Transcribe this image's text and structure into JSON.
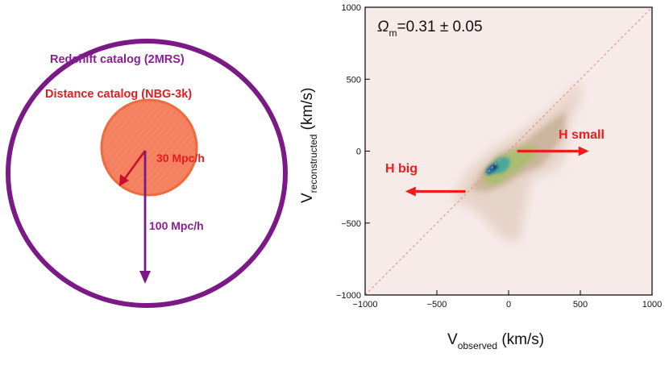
{
  "left_panel": {
    "redshift_catalog_label": "Redshift catalog (2MRS)",
    "distance_catalog_label": "Distance catalog (NBG-3k)",
    "inner_radius_label": "30 Mpc/h",
    "outer_radius_label": "100 Mpc/h",
    "colors": {
      "outer_circle": "#7b1a86",
      "inner_circle_fill": "#f4805f",
      "inner_circle_stroke": "#ef6a3c",
      "red_text": "#dd1f1f"
    }
  },
  "right_panel": {
    "annotation_omega_symbol": "Ω",
    "annotation_omega_sub": "m",
    "annotation_value": "=0.31 ± 0.05",
    "arrow_right_label": "H small",
    "arrow_left_label": "H big",
    "colors": {
      "plot_background": "#f7ebea",
      "diagonal_line": "#e88a84",
      "arrow_red": "#ee1c1c"
    }
  },
  "chart_data": {
    "type": "heatmap",
    "title": "",
    "xlabel": "V",
    "xlabel_sub": "observed",
    "xlabel_unit": " (km/s)",
    "ylabel": "V",
    "ylabel_sub": "reconstructed",
    "ylabel_unit": " (km/s)",
    "xlim": [
      -1000,
      1000
    ],
    "ylim": [
      -1000,
      1000
    ],
    "xticks": [
      -1000,
      -500,
      0,
      500,
      1000
    ],
    "yticks": [
      -1000,
      -500,
      0,
      500,
      1000
    ],
    "xtick_labels": [
      "−1000",
      "−500",
      "0",
      "500",
      "1000"
    ],
    "ytick_labels": [
      "−1000",
      "−500",
      "0",
      "500",
      "1000"
    ],
    "reference_line": {
      "type": "y = x",
      "style": "dashed"
    },
    "density": {
      "peak_center": [
        -120,
        -120
      ],
      "contour_levels": [
        "outer",
        "middle",
        "inner",
        "core"
      ],
      "level_colors": [
        "#e3cfc2",
        "#c6ad94",
        "#a8be6a",
        "#1a6fa8"
      ]
    },
    "annotations": [
      {
        "text": "H small",
        "arrow_from": [
          60,
          0
        ],
        "arrow_to": [
          560,
          0
        ]
      },
      {
        "text": "H big",
        "arrow_from": [
          -300,
          -280
        ],
        "arrow_to": [
          -720,
          -280
        ]
      }
    ]
  }
}
